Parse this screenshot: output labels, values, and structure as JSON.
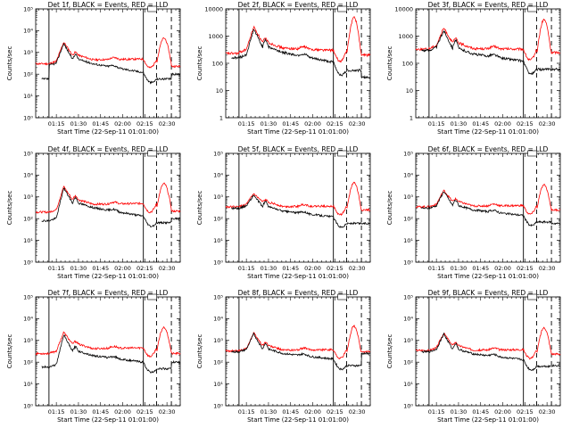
{
  "figure": {
    "x_axis_label": "Start Time (22-Sep-11 01:01:00)",
    "y_axis_label": "Counts/sec",
    "x_tick_labels": [
      "01:15",
      "01:30",
      "01:45",
      "02:00",
      "02:15",
      "02:30"
    ],
    "colors": {
      "events": "#000000",
      "lld": "#ff0000",
      "axes": "#000000"
    }
  },
  "chart_data": [
    {
      "type": "line",
      "title": "Det 1f, BLACK = Events, RED = LLD",
      "scale": "log",
      "ylim": [
        1,
        100000
      ],
      "y_ticks": [
        1,
        10,
        100,
        1000,
        10000,
        100000
      ],
      "y_tick_labels": [
        "10⁰",
        "10¹",
        "10²",
        "10³",
        "10⁴",
        "10⁵"
      ],
      "xlim": [
        "01:01",
        "02:39"
      ],
      "vlines_solid": [
        "01:10",
        "02:14"
      ],
      "vlines_dashed": [
        "02:23",
        "02:33"
      ],
      "events": {
        "base": 250,
        "pre": 60,
        "peak": 2600,
        "peak2": 800,
        "mid": 300,
        "end": 120,
        "post": 100
      },
      "lld": {
        "base": 300,
        "pre": 300,
        "peak": 3000,
        "peak2": 1000,
        "mid": 460,
        "end": 500,
        "hump": 4500,
        "post": 230
      }
    },
    {
      "type": "line",
      "title": "Det 2f, BLACK = Events, RED = LLD",
      "scale": "log",
      "ylim": [
        1,
        10000
      ],
      "y_ticks": [
        1,
        10,
        100,
        1000,
        10000
      ],
      "y_tick_labels": [
        "1",
        "10",
        "100",
        "1000",
        "10000"
      ],
      "xlim": [
        "01:01",
        "02:39"
      ],
      "vlines_solid": [
        "01:10",
        "02:14"
      ],
      "vlines_dashed": [
        "02:23",
        "02:33"
      ],
      "events": {
        "base": 160,
        "pre": 160,
        "peak": 1800,
        "peak2": 700,
        "mid": 250,
        "end": 110,
        "post": 30
      },
      "lld": {
        "base": 250,
        "pre": 230,
        "peak": 2200,
        "peak2": 800,
        "mid": 360,
        "end": 300,
        "hump": 4800,
        "post": 200
      }
    },
    {
      "type": "line",
      "title": "Det 3f, BLACK = Events, RED = LLD",
      "scale": "log",
      "ylim": [
        1,
        10000
      ],
      "y_ticks": [
        1,
        10,
        100,
        1000,
        10000
      ],
      "y_tick_labels": [
        "1",
        "10",
        "100",
        "1000",
        "10000"
      ],
      "xlim": [
        "01:01",
        "02:39"
      ],
      "vlines_solid": [
        "01:10",
        "02:14"
      ],
      "vlines_dashed": [
        "02:23",
        "02:33"
      ],
      "events": {
        "base": 300,
        "pre": 300,
        "peak": 1600,
        "peak2": 700,
        "mid": 220,
        "end": 120,
        "post": 60
      },
      "lld": {
        "base": 350,
        "pre": 330,
        "peak": 2000,
        "peak2": 800,
        "mid": 350,
        "end": 330,
        "hump": 4000,
        "post": 250
      }
    },
    {
      "type": "line",
      "title": "Det 4f, BLACK = Events, RED = LLD",
      "scale": "log",
      "ylim": [
        1,
        100000
      ],
      "y_ticks": [
        1,
        10,
        100,
        1000,
        10000,
        100000
      ],
      "y_tick_labels": [
        "10⁰",
        "10¹",
        "10²",
        "10³",
        "10⁴",
        "10⁵"
      ],
      "xlim": [
        "01:01",
        "02:39"
      ],
      "vlines_solid": [
        "01:10",
        "02:14"
      ],
      "vlines_dashed": [
        "02:23",
        "02:33"
      ],
      "events": {
        "base": 80,
        "pre": 80,
        "peak": 2600,
        "peak2": 900,
        "mid": 320,
        "end": 130,
        "post": 100
      },
      "lld": {
        "base": 200,
        "pre": 200,
        "peak": 3000,
        "peak2": 1100,
        "mid": 460,
        "end": 500,
        "hump": 4000,
        "post": 220
      }
    },
    {
      "type": "line",
      "title": "Det 5f, BLACK = Events, RED = LLD",
      "scale": "log",
      "ylim": [
        1,
        100000
      ],
      "y_ticks": [
        1,
        10,
        100,
        1000,
        10000,
        100000
      ],
      "y_tick_labels": [
        "10⁰",
        "10¹",
        "10²",
        "10³",
        "10⁴",
        "10⁵"
      ],
      "xlim": [
        "01:01",
        "02:39"
      ],
      "vlines_solid": [
        "01:10",
        "02:14"
      ],
      "vlines_dashed": [
        "02:23",
        "02:33"
      ],
      "events": {
        "base": 300,
        "pre": 300,
        "peak": 1200,
        "peak2": 600,
        "mid": 220,
        "end": 120,
        "post": 60
      },
      "lld": {
        "base": 350,
        "pre": 350,
        "peak": 1400,
        "peak2": 700,
        "mid": 360,
        "end": 380,
        "hump": 4500,
        "post": 250
      }
    },
    {
      "type": "line",
      "title": "Det 6f, BLACK = Events, RED = LLD",
      "scale": "log",
      "ylim": [
        1,
        100000
      ],
      "y_ticks": [
        1,
        10,
        100,
        1000,
        10000,
        100000
      ],
      "y_tick_labels": [
        "10⁰",
        "10¹",
        "10²",
        "10³",
        "10⁴",
        "10⁵"
      ],
      "xlim": [
        "01:01",
        "02:39"
      ],
      "vlines_solid": [
        "01:10",
        "02:14"
      ],
      "vlines_dashed": [
        "02:23",
        "02:33"
      ],
      "events": {
        "base": 300,
        "pre": 300,
        "peak": 1800,
        "peak2": 700,
        "mid": 250,
        "end": 140,
        "post": 60
      },
      "lld": {
        "base": 350,
        "pre": 350,
        "peak": 2000,
        "peak2": 800,
        "mid": 380,
        "end": 400,
        "hump": 3500,
        "post": 250
      }
    },
    {
      "type": "line",
      "title": "Det 7f, BLACK = Events, RED = LLD",
      "scale": "log",
      "ylim": [
        1,
        100000
      ],
      "y_ticks": [
        1,
        10,
        100,
        1000,
        10000,
        100000
      ],
      "y_tick_labels": [
        "10⁰",
        "10¹",
        "10²",
        "10³",
        "10⁴",
        "10⁵"
      ],
      "xlim": [
        "01:01",
        "02:39"
      ],
      "vlines_solid": [
        "01:10",
        "02:14"
      ],
      "vlines_dashed": [
        "02:23",
        "02:33"
      ],
      "events": {
        "base": 60,
        "pre": 60,
        "peak": 1800,
        "peak2": 500,
        "mid": 200,
        "end": 100,
        "post": 100
      },
      "lld": {
        "base": 250,
        "pre": 250,
        "peak": 2400,
        "peak2": 900,
        "mid": 420,
        "end": 460,
        "hump": 4000,
        "post": 250
      }
    },
    {
      "type": "line",
      "title": "Det 8f, BLACK = Events, RED = LLD",
      "scale": "log",
      "ylim": [
        1,
        100000
      ],
      "y_ticks": [
        1,
        10,
        100,
        1000,
        10000,
        100000
      ],
      "y_tick_labels": [
        "10⁰",
        "10¹",
        "10²",
        "10³",
        "10⁴",
        "10⁵"
      ],
      "xlim": [
        "01:01",
        "02:39"
      ],
      "vlines_solid": [
        "01:10",
        "02:14"
      ],
      "vlines_dashed": [
        "02:23",
        "02:33"
      ],
      "events": {
        "base": 300,
        "pre": 300,
        "peak": 2000,
        "peak2": 700,
        "mid": 250,
        "end": 140,
        "post": 250
      },
      "lld": {
        "base": 330,
        "pre": 330,
        "peak": 2200,
        "peak2": 800,
        "mid": 360,
        "end": 380,
        "hump": 4500,
        "post": 300
      }
    },
    {
      "type": "line",
      "title": "Det 9f, BLACK = Events, RED = LLD",
      "scale": "log",
      "ylim": [
        1,
        100000
      ],
      "y_ticks": [
        1,
        10,
        100,
        1000,
        10000,
        100000
      ],
      "y_tick_labels": [
        "10⁰",
        "10¹",
        "10²",
        "10³",
        "10⁴",
        "10⁵"
      ],
      "xlim": [
        "01:01",
        "02:39"
      ],
      "vlines_solid": [
        "01:10",
        "02:14"
      ],
      "vlines_dashed": [
        "02:23",
        "02:33"
      ],
      "events": {
        "base": 300,
        "pre": 300,
        "peak": 2000,
        "peak2": 700,
        "mid": 240,
        "end": 130,
        "post": 70
      },
      "lld": {
        "base": 350,
        "pre": 350,
        "peak": 2200,
        "peak2": 800,
        "mid": 360,
        "end": 380,
        "hump": 3800,
        "post": 240
      }
    }
  ]
}
